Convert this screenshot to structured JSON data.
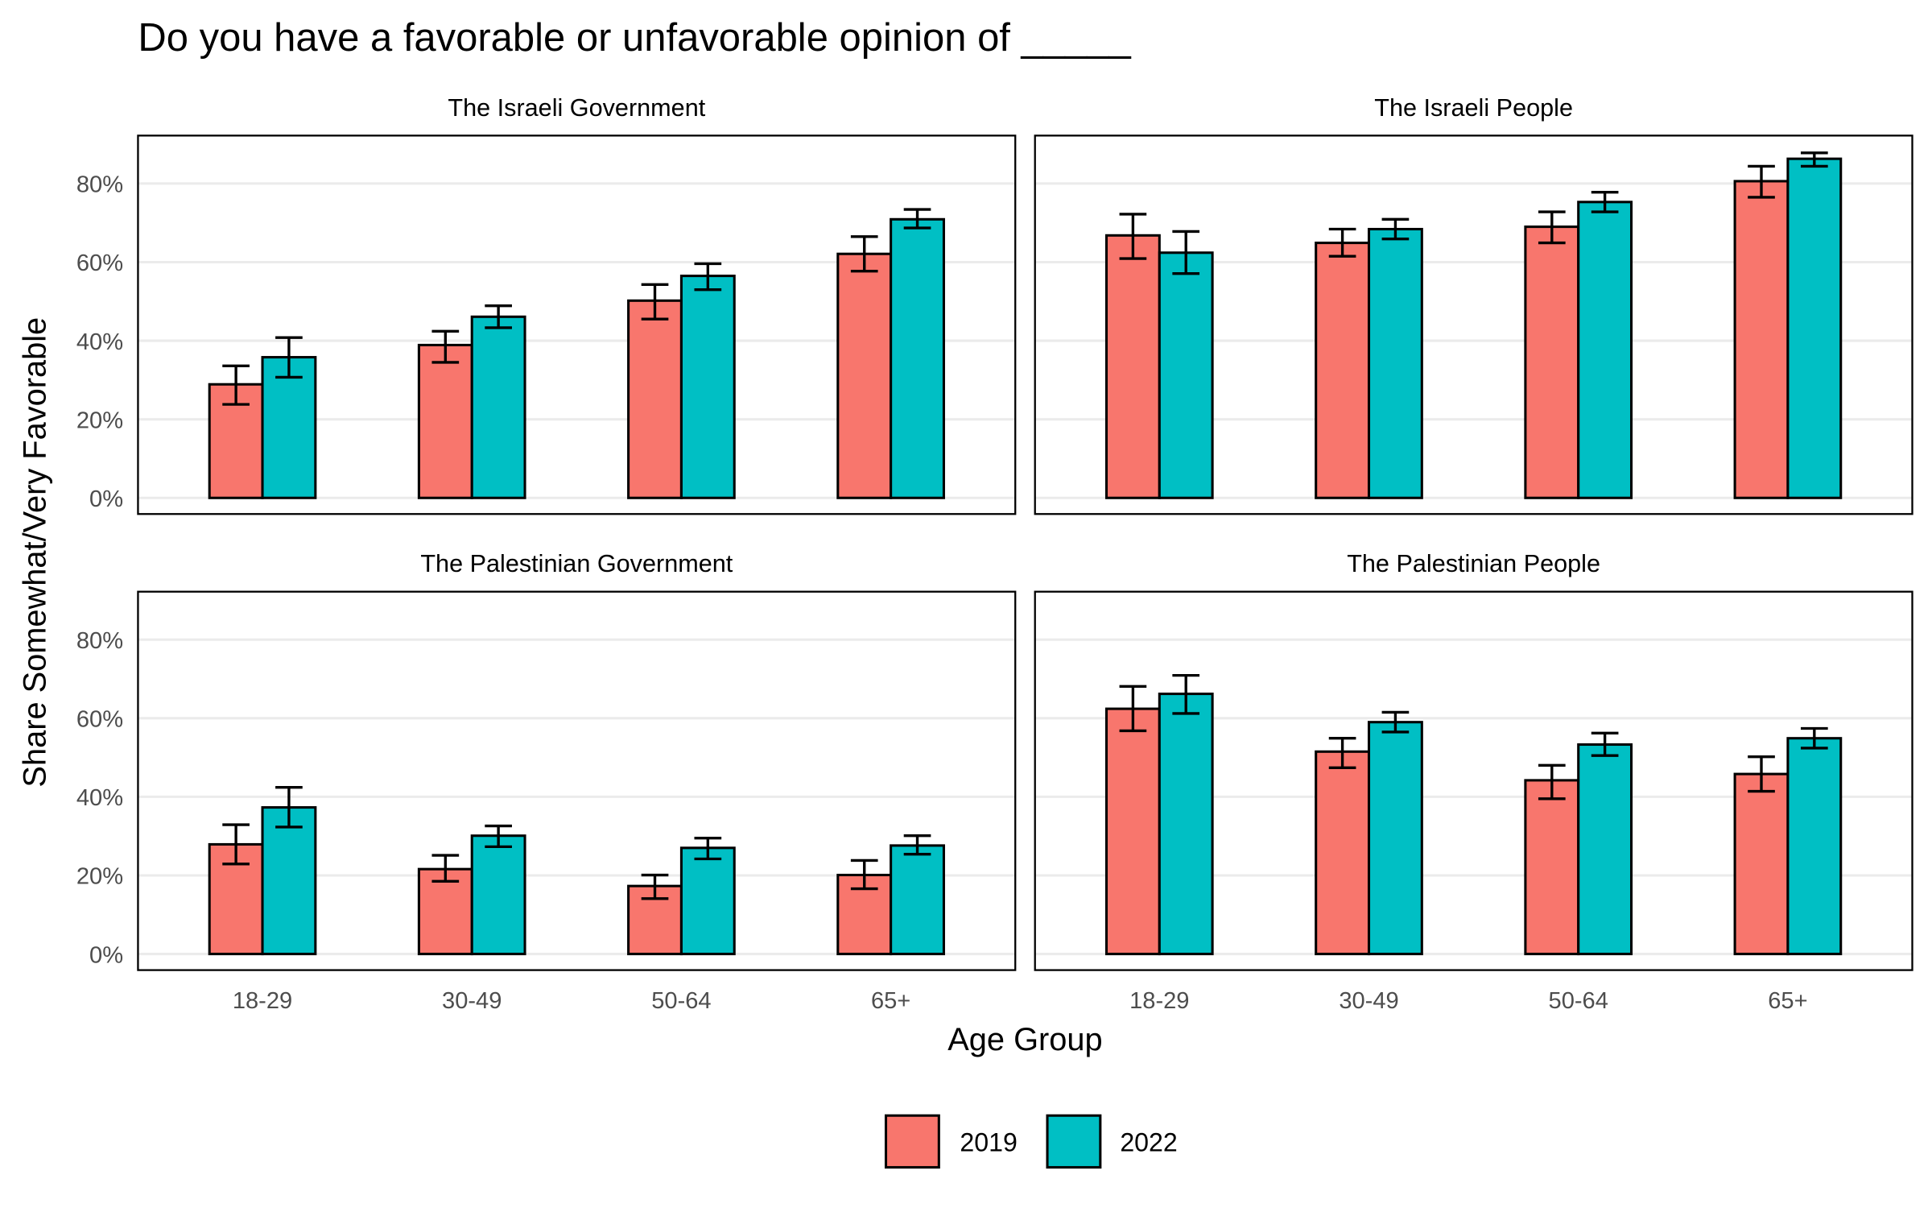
{
  "chart_data": {
    "type": "bar",
    "title": "Do you have a favorable or unfavorable opinion of _____",
    "xlabel": "Age Group",
    "ylabel": "Share Somewhat/Very Favorable",
    "ylim": [
      -4.1,
      92.2
    ],
    "yticks": [
      0,
      20,
      40,
      60,
      80
    ],
    "ytick_labels": [
      "0%",
      "20%",
      "40%",
      "60%",
      "80%"
    ],
    "categories": [
      "18-29",
      "30-49",
      "50-64",
      "65+"
    ],
    "grid": true,
    "legend": {
      "placement": "bottom",
      "entries": [
        "2019",
        "2022"
      ]
    },
    "colors": {
      "2019": "#F8766D",
      "2022": "#00BFC4"
    },
    "panels": [
      {
        "title": "The Israeli Government",
        "series": [
          {
            "name": "2019",
            "values": [
              28.9,
              38.9,
              50.2,
              62.1
            ],
            "lower": [
              23.8,
              34.5,
              45.5,
              57.7
            ],
            "upper": [
              33.6,
              42.4,
              54.3,
              66.5
            ]
          },
          {
            "name": "2022",
            "values": [
              35.8,
              46.1,
              56.5,
              70.9
            ],
            "lower": [
              30.7,
              43.3,
              53.0,
              68.7
            ],
            "upper": [
              40.8,
              48.9,
              59.6,
              73.4
            ]
          }
        ]
      },
      {
        "title": "The Israeli People",
        "series": [
          {
            "name": "2019",
            "values": [
              66.8,
              64.9,
              69.0,
              80.6
            ],
            "lower": [
              60.9,
              61.5,
              64.9,
              76.5
            ],
            "upper": [
              72.2,
              68.4,
              72.8,
              84.4
            ]
          },
          {
            "name": "2022",
            "values": [
              62.4,
              68.4,
              75.3,
              86.3
            ],
            "lower": [
              57.1,
              65.9,
              72.8,
              84.4
            ],
            "upper": [
              67.8,
              70.9,
              77.8,
              87.8
            ]
          }
        ]
      },
      {
        "title": "The Palestinian Government",
        "series": [
          {
            "name": "2019",
            "values": [
              27.9,
              21.6,
              17.3,
              20.1
            ],
            "lower": [
              22.9,
              18.5,
              14.1,
              16.6
            ],
            "upper": [
              32.9,
              25.1,
              20.1,
              23.8
            ]
          },
          {
            "name": "2022",
            "values": [
              37.3,
              30.1,
              27.0,
              27.6
            ],
            "lower": [
              32.3,
              27.3,
              24.2,
              25.4
            ],
            "upper": [
              42.4,
              32.6,
              29.5,
              30.1
            ]
          }
        ]
      },
      {
        "title": "The Palestinian People",
        "series": [
          {
            "name": "2019",
            "values": [
              62.4,
              51.5,
              44.2,
              45.8
            ],
            "lower": [
              56.8,
              47.4,
              39.5,
              41.4
            ],
            "upper": [
              68.1,
              54.9,
              48.0,
              50.2
            ]
          },
          {
            "name": "2022",
            "values": [
              66.2,
              59.0,
              53.3,
              54.9
            ],
            "lower": [
              61.2,
              56.5,
              50.5,
              52.4
            ],
            "upper": [
              70.9,
              61.5,
              56.2,
              57.4
            ]
          }
        ]
      }
    ]
  }
}
